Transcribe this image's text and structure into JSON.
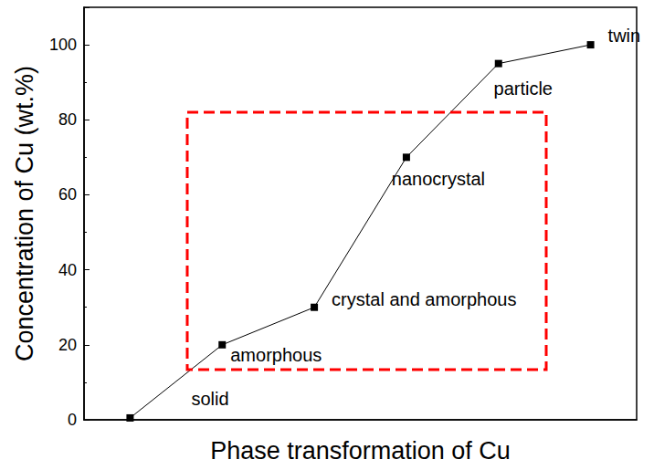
{
  "chart_data": {
    "type": "line",
    "x_label": "Phase transformation of Cu",
    "y_label": "Concentration of Cu (wt.%)",
    "categories": [
      "solid",
      "amorphous",
      "crystal and amorphous",
      "nanocrystal",
      "particle",
      "twin"
    ],
    "values": [
      0.5,
      20,
      30,
      70,
      95,
      100
    ],
    "color": "#000000",
    "marker": "square",
    "ylim": [
      0,
      110
    ],
    "yticks": [
      0,
      20,
      40,
      60,
      80,
      100
    ],
    "tick_labels": "y",
    "grid": false
  }
}
